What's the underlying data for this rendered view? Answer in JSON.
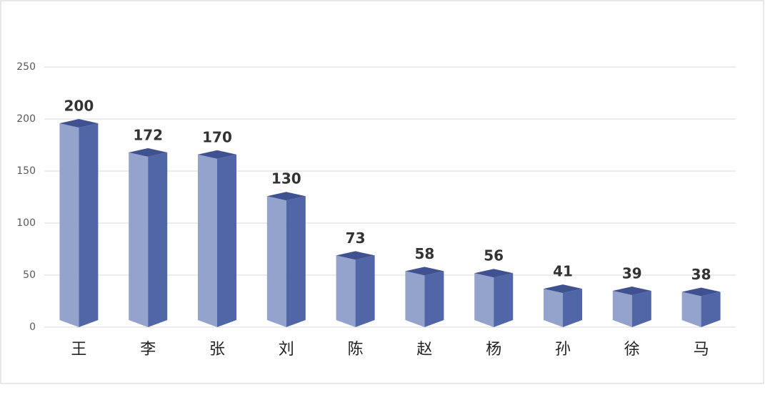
{
  "chart_data": {
    "type": "bar3d",
    "categories": [
      "王",
      "李",
      "张",
      "刘",
      "陈",
      "赵",
      "杨",
      "孙",
      "徐",
      "马"
    ],
    "values": [
      200,
      172,
      170,
      130,
      73,
      58,
      56,
      41,
      39,
      38
    ],
    "ylim": [
      0,
      250
    ],
    "yticks": [
      0,
      50,
      100,
      150,
      200,
      250
    ],
    "grid": true,
    "color": "#5066a6"
  }
}
